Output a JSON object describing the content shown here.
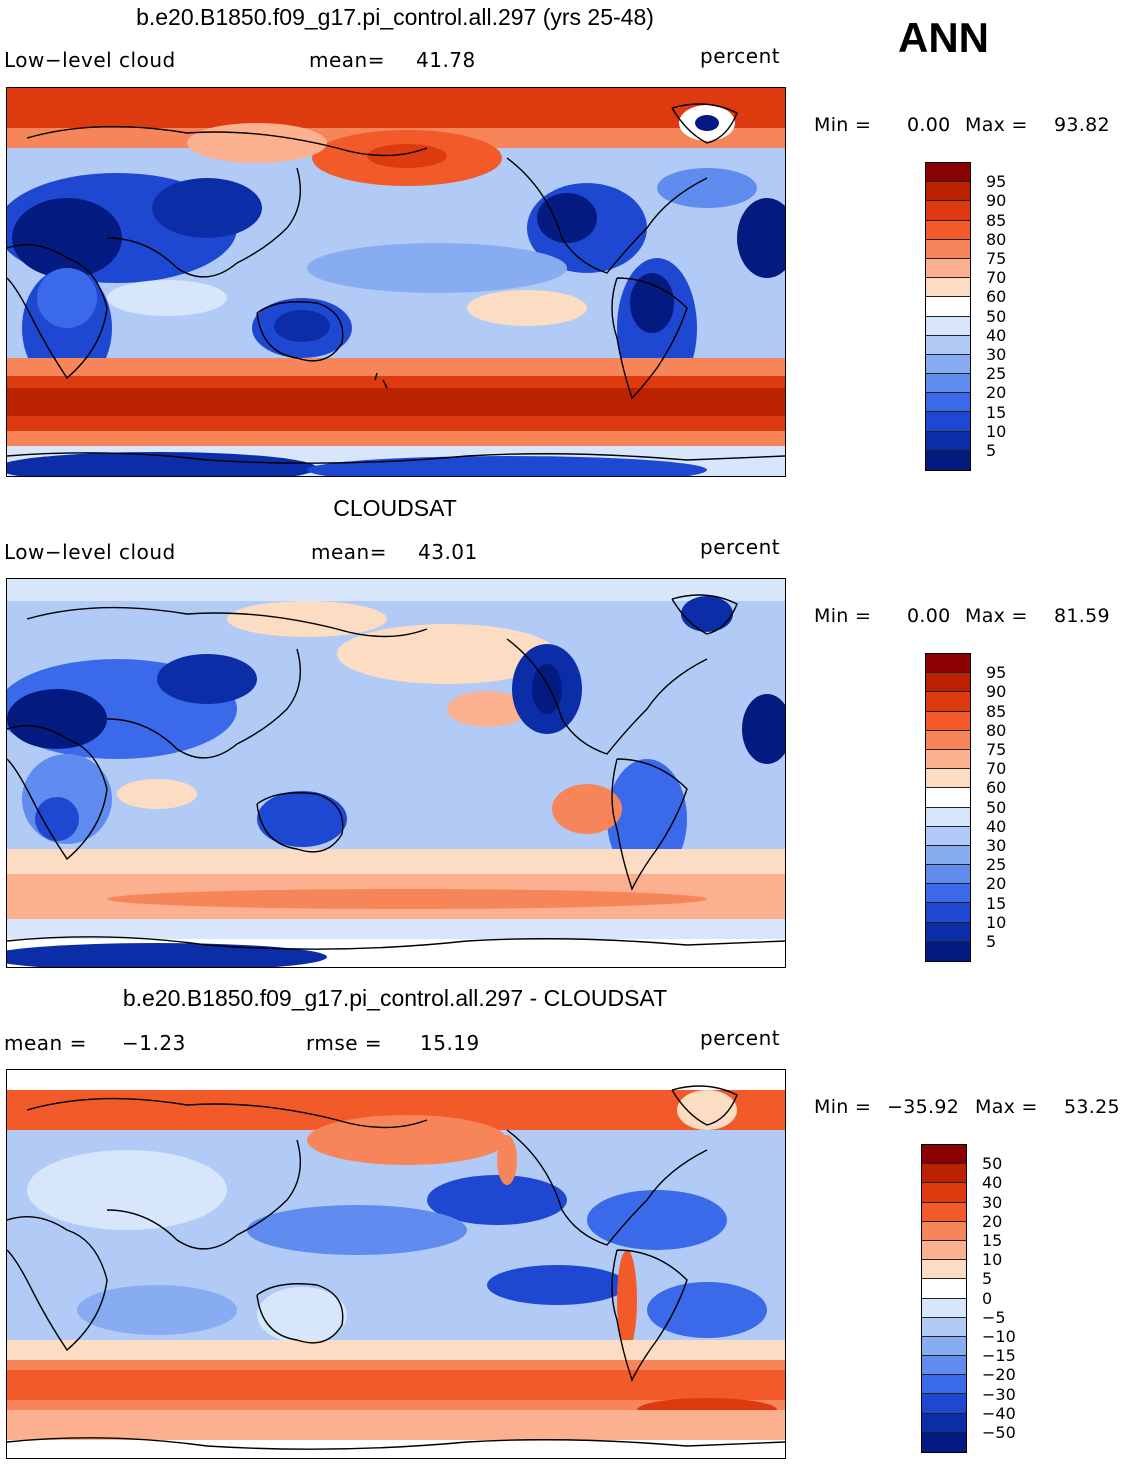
{
  "season": "ANN",
  "units": "percent",
  "panels": [
    {
      "title": "b.e20.B1850.f09_g17.pi_control.all.297 (yrs 25-48)",
      "variable": "Low−level cloud",
      "stat1_label": "mean=",
      "stat1_value": "41.78",
      "stat2_label": "",
      "stat2_value": "",
      "min_label": "Min =",
      "min_value": "0.00",
      "max_label": "Max =",
      "max_value": "93.82",
      "levels": [
        "95",
        "90",
        "85",
        "80",
        "75",
        "70",
        "60",
        "50",
        "40",
        "30",
        "25",
        "20",
        "15",
        "10",
        "5"
      ]
    },
    {
      "title": "CLOUDSAT",
      "variable": "Low−level cloud",
      "stat1_label": "mean=",
      "stat1_value": "43.01",
      "stat2_label": "",
      "stat2_value": "",
      "min_label": "Min =",
      "min_value": "0.00",
      "max_label": "Max =",
      "max_value": "81.59",
      "levels": [
        "95",
        "90",
        "85",
        "80",
        "75",
        "70",
        "60",
        "50",
        "40",
        "30",
        "25",
        "20",
        "15",
        "10",
        "5"
      ]
    },
    {
      "title": "b.e20.B1850.f09_g17.pi_control.all.297 - CLOUDSAT",
      "variable": "",
      "stat1_label": "mean =",
      "stat1_value": "−1.23",
      "stat2_label": "rmse =",
      "stat2_value": "15.19",
      "min_label": "Min =",
      "min_value": "−35.92",
      "max_label": "Max =",
      "max_value": "53.25",
      "levels": [
        "50",
        "40",
        "30",
        "20",
        "15",
        "10",
        "5",
        "0",
        "−5",
        "−10",
        "−15",
        "−20",
        "−30",
        "−40",
        "−50"
      ]
    }
  ],
  "colormap": [
    "#8b0000",
    "#bb2200",
    "#dd3a10",
    "#f25a2a",
    "#f7855a",
    "#fbb090",
    "#fddcc4",
    "#ffffff",
    "#d7e6fb",
    "#b1cbf6",
    "#88acf2",
    "#5f8cee",
    "#3a6aea",
    "#1f48d2",
    "#0b2ea8",
    "#031a80"
  ],
  "chart_data": [
    {
      "type": "heatmap",
      "title": "b.e20.B1850.f09_g17.pi_control.all.297 (yrs 25-48)",
      "variable": "Low-level cloud",
      "units": "percent",
      "mean": 41.78,
      "min": 0.0,
      "max": 93.82,
      "contour_levels": [
        5,
        10,
        15,
        20,
        25,
        30,
        40,
        50,
        60,
        70,
        75,
        80,
        85,
        90,
        95
      ]
    },
    {
      "type": "heatmap",
      "title": "CLOUDSAT",
      "variable": "Low-level cloud",
      "units": "percent",
      "mean": 43.01,
      "min": 0.0,
      "max": 81.59,
      "contour_levels": [
        5,
        10,
        15,
        20,
        25,
        30,
        40,
        50,
        60,
        70,
        75,
        80,
        85,
        90,
        95
      ]
    },
    {
      "type": "heatmap",
      "title": "b.e20.B1850.f09_g17.pi_control.all.297 - CLOUDSAT",
      "units": "percent",
      "mean": -1.23,
      "rmse": 15.19,
      "min": -35.92,
      "max": 53.25,
      "contour_levels": [
        -50,
        -40,
        -30,
        -20,
        -15,
        -10,
        -5,
        0,
        5,
        10,
        15,
        20,
        30,
        40,
        50
      ]
    }
  ]
}
